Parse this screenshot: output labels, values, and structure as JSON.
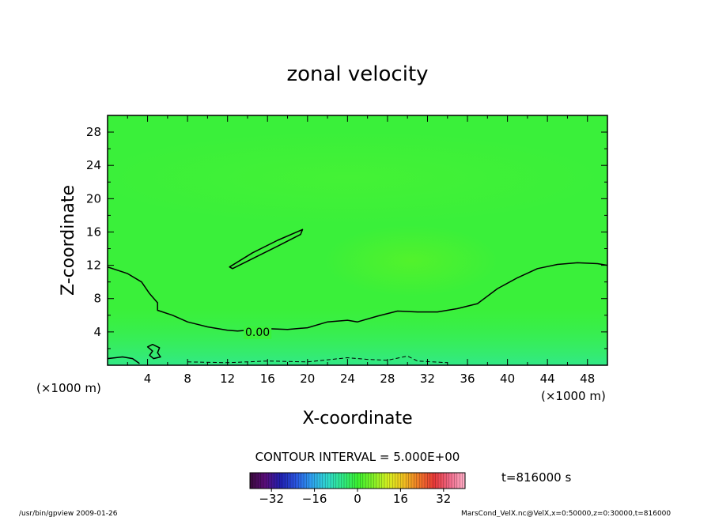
{
  "chart_data": {
    "type": "heatmap",
    "title": "zonal velocity",
    "xlabel": "X-coordinate",
    "ylabel": "Z-coordinate",
    "x_unit_label": "(×1000 m)",
    "y_unit_label": "(×1000 m)",
    "xlim": [
      0,
      50
    ],
    "ylim": [
      0,
      30
    ],
    "xticks": [
      "4",
      "8",
      "12",
      "16",
      "20",
      "24",
      "28",
      "32",
      "36",
      "40",
      "44",
      "48"
    ],
    "yticks": [
      "4",
      "8",
      "12",
      "16",
      "20",
      "24",
      "28"
    ],
    "contour_interval_label": "CONTOUR INTERVAL = 5.000E+00",
    "time_label": "t=816000 s",
    "contour_labels": [
      {
        "text": "0.00",
        "x": 15,
        "z": 4
      }
    ],
    "contours": [
      {
        "level": 0,
        "points": [
          [
            0,
            11.8
          ],
          [
            2,
            11.0
          ],
          [
            3.4,
            10.0
          ],
          [
            4.2,
            8.6
          ],
          [
            5.0,
            7.5
          ],
          [
            5.0,
            6.6
          ],
          [
            6.5,
            6.0
          ],
          [
            8,
            5.2
          ],
          [
            10,
            4.6
          ],
          [
            12,
            4.2
          ],
          [
            13,
            4.1
          ],
          [
            16,
            4.4
          ],
          [
            18,
            4.3
          ],
          [
            20,
            4.5
          ],
          [
            22,
            5.2
          ],
          [
            24,
            5.4
          ],
          [
            25,
            5.2
          ],
          [
            27,
            5.9
          ],
          [
            29,
            6.5
          ],
          [
            31,
            6.4
          ],
          [
            33,
            6.4
          ],
          [
            35,
            6.8
          ],
          [
            37,
            7.4
          ],
          [
            39,
            9.2
          ],
          [
            41,
            10.5
          ],
          [
            43,
            11.6
          ],
          [
            45,
            12.1
          ],
          [
            47,
            12.3
          ],
          [
            49,
            12.2
          ],
          [
            50,
            12.0
          ]
        ]
      },
      {
        "level": 0,
        "closed": true,
        "points": [
          [
            12.2,
            11.8
          ],
          [
            14.5,
            13.5
          ],
          [
            17,
            15.0
          ],
          [
            19.5,
            16.3
          ],
          [
            19.3,
            15.7
          ],
          [
            17.0,
            14.3
          ],
          [
            14.5,
            12.8
          ],
          [
            12.5,
            11.6
          ]
        ]
      },
      {
        "level": 0,
        "closed": true,
        "points": [
          [
            4.0,
            2.2
          ],
          [
            4.5,
            2.5
          ],
          [
            5.2,
            2.1
          ],
          [
            5.0,
            1.5
          ],
          [
            5.3,
            1.0
          ],
          [
            4.6,
            0.8
          ],
          [
            4.2,
            1.2
          ],
          [
            4.5,
            1.7
          ]
        ]
      },
      {
        "level": 0,
        "points": [
          [
            0,
            0.8
          ],
          [
            1.5,
            1.0
          ],
          [
            2.5,
            0.8
          ],
          [
            3.2,
            0.2
          ]
        ]
      },
      {
        "level": -5,
        "dashed": true,
        "points": [
          [
            8,
            0.4
          ],
          [
            12,
            0.3
          ],
          [
            16,
            0.5
          ],
          [
            20,
            0.4
          ],
          [
            24,
            0.9
          ],
          [
            26,
            0.7
          ],
          [
            28,
            0.6
          ],
          [
            30,
            1.1
          ],
          [
            31,
            0.5
          ],
          [
            34,
            0.3
          ]
        ]
      }
    ],
    "colorbar": {
      "range": [
        -40,
        40
      ],
      "ticks": [
        "-32",
        "-16",
        "0",
        "16",
        "32"
      ],
      "tick_values": [
        -32,
        -16,
        0,
        16,
        32
      ],
      "colors": [
        "#3a0a3c",
        "#5a0d7a",
        "#2020b0",
        "#2a55e0",
        "#2fa0f0",
        "#30d8d0",
        "#30e888",
        "#3af030",
        "#80f028",
        "#d8f020",
        "#f0c020",
        "#f07828",
        "#e83838",
        "#f06a8a",
        "#ffb0c8"
      ]
    },
    "field_colors": {
      "base": "#3af03a",
      "lighter": "#45f235",
      "greenish_yellow": "#55f22a",
      "cyan_tint": "#36ee60",
      "blue_tint": "#2fe6a0"
    }
  },
  "footer": {
    "left": "/usr/bin/gpview   2009-01-26",
    "right": "MarsCond_VelX.nc@VelX,x=0:50000,z=0:30000,t=816000"
  }
}
